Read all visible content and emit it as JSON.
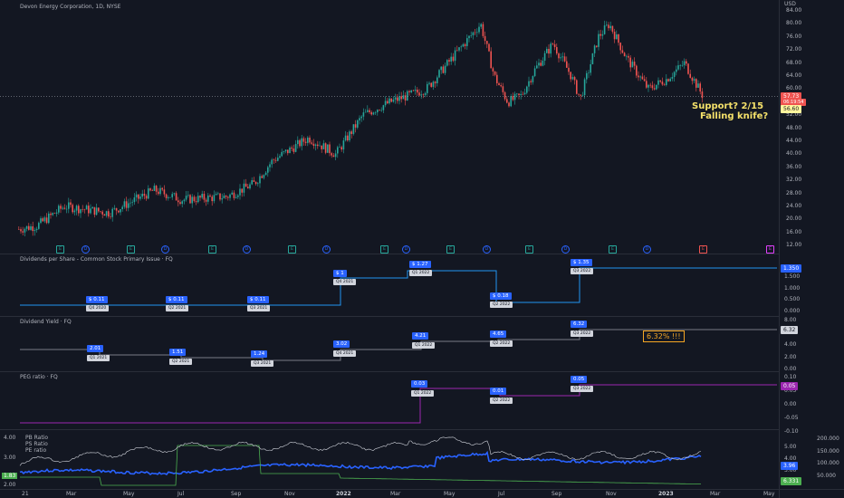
{
  "header": {
    "symbol_title": "Devon Energy Corporation, 1D, NYSE"
  },
  "price_axis": {
    "currency": "USD",
    "ticks": [
      "84.00",
      "80.00",
      "76.00",
      "72.00",
      "68.00",
      "64.00",
      "60.00",
      "56.00",
      "52.00",
      "48.00",
      "44.00",
      "40.00",
      "36.00",
      "32.00",
      "28.00",
      "24.00",
      "20.00",
      "16.00",
      "12.00"
    ],
    "last_price": "57.73",
    "countdown": "06:19:54",
    "level_tag": "56.60"
  },
  "annotation": {
    "line1": "Support?  2/15",
    "line2": "Falling knife?"
  },
  "events_row": [
    "E",
    "D",
    "E",
    "D",
    "E",
    "D",
    "E",
    "D",
    "E",
    "D",
    "E",
    "D",
    "E",
    "D",
    "E",
    "D",
    "E",
    "E"
  ],
  "panes": {
    "dividends": {
      "title": "Dividends per Share - Common Stock Primary Issue · FQ",
      "ticks": [
        "1.500",
        "1.000",
        "0.500",
        "0.000"
      ],
      "current": "1.350",
      "labels": [
        {
          "value": "$ 0.11",
          "quarter": "Q4 2020"
        },
        {
          "value": "$ 0.11",
          "quarter": "Q2 2021"
        },
        {
          "value": "$ 0.11",
          "quarter": "Q3 2021"
        },
        {
          "value": "$ 1",
          "quarter": "Q4 2021"
        },
        {
          "value": "$ 1.27",
          "quarter": "Q1 2022"
        },
        {
          "value": "$ 0.18",
          "quarter": "Q2 2022"
        },
        {
          "value": "$ 1.35",
          "quarter": "Q3 2022"
        }
      ]
    },
    "yield": {
      "title": "Dividend Yield · FQ",
      "ticks": [
        "8.00",
        "6.00",
        "4.00",
        "2.00",
        "0.00"
      ],
      "current": "6.32",
      "note": "6.32% !!!",
      "labels": [
        {
          "value": "2.01",
          "quarter": "Q1 2021"
        },
        {
          "value": "1.51",
          "quarter": "Q2 2021"
        },
        {
          "value": "1.24",
          "quarter": "Q3 2021"
        },
        {
          "value": "3.02",
          "quarter": "Q4 2021"
        },
        {
          "value": "4.21",
          "quarter": "Q1 2022"
        },
        {
          "value": "4.65",
          "quarter": "Q2 2022"
        },
        {
          "value": "6.32",
          "quarter": "Q3 2022"
        }
      ]
    },
    "peg": {
      "title": "PEG ratio · FQ",
      "ticks": [
        "0.10",
        "0.05",
        "0.00",
        "-0.05",
        "-0.10"
      ],
      "current": "0.05",
      "labels": [
        {
          "value": "0.03",
          "quarter": "Q1 2022"
        },
        {
          "value": "0.01",
          "quarter": "Q2 2022"
        },
        {
          "value": "0.05",
          "quarter": "Q3 2022"
        }
      ]
    },
    "ratios": {
      "legend": [
        "PB Ratio",
        "PS Ratio",
        "PE ratio"
      ],
      "left_ticks": [
        "4.00",
        "3.00",
        "2.00"
      ],
      "left_tag": "1.83",
      "right_ticks": [
        "200.000",
        "150.000",
        "100.000",
        "50.000"
      ],
      "ticks": [
        "5.00",
        "4.00",
        "3.00",
        "2.00"
      ],
      "tag_blue": "3.96",
      "tag_green": "6.331"
    }
  },
  "time_axis": [
    "21",
    "Mar",
    "May",
    "Jul",
    "Sep",
    "Nov",
    "2022",
    "Mar",
    "May",
    "Jul",
    "Sep",
    "Nov",
    "2023",
    "Mar",
    "May"
  ],
  "colors": {
    "bg": "#131722",
    "up": "#26a69a",
    "down": "#ef5350",
    "blue": "#2962ff",
    "line_blue": "#2196f3",
    "purple": "#9c27b0",
    "annotation": "#f5e16a"
  }
}
